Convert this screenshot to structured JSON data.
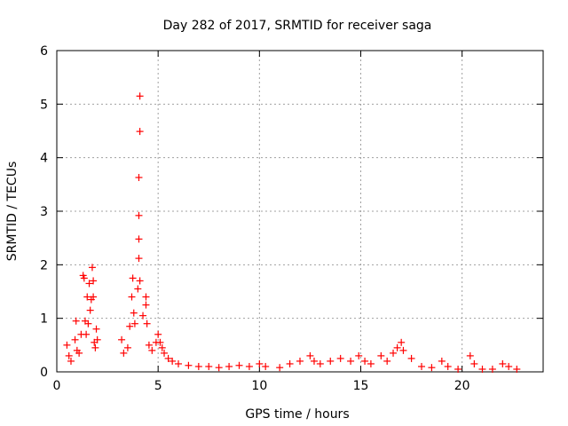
{
  "chart_data": {
    "type": "scatter",
    "title": "Day 282 of 2017, SRMTID for receiver saga",
    "xlabel": "GPS time / hours",
    "ylabel": "SRMTID / TECUs",
    "xlim": [
      0,
      24
    ],
    "ylim": [
      0,
      6
    ],
    "x_ticks": [
      0,
      5,
      10,
      15,
      20
    ],
    "x_tick_labels": [
      "0",
      "5",
      "10",
      "15",
      "20"
    ],
    "y_ticks": [
      0,
      1,
      2,
      3,
      4,
      5,
      6
    ],
    "y_tick_labels": [
      "0",
      "1",
      "2",
      "3",
      "4",
      "5",
      "6"
    ],
    "grid": true,
    "marker": "+",
    "series": [
      {
        "name": "SRMTID",
        "color": "#ff0000",
        "points": [
          [
            0.5,
            0.5
          ],
          [
            0.6,
            0.3
          ],
          [
            0.7,
            0.2
          ],
          [
            0.9,
            0.6
          ],
          [
            0.95,
            0.95
          ],
          [
            1.0,
            0.4
          ],
          [
            1.1,
            0.35
          ],
          [
            1.2,
            0.7
          ],
          [
            1.3,
            1.8
          ],
          [
            1.35,
            1.75
          ],
          [
            1.4,
            0.95
          ],
          [
            1.45,
            0.7
          ],
          [
            1.5,
            1.4
          ],
          [
            1.55,
            0.9
          ],
          [
            1.6,
            1.65
          ],
          [
            1.65,
            1.15
          ],
          [
            1.7,
            1.35
          ],
          [
            1.75,
            1.95
          ],
          [
            1.8,
            1.7
          ],
          [
            1.8,
            1.4
          ],
          [
            1.85,
            0.55
          ],
          [
            1.9,
            0.45
          ],
          [
            1.95,
            0.8
          ],
          [
            2.0,
            0.6
          ],
          [
            3.2,
            0.6
          ],
          [
            3.3,
            0.35
          ],
          [
            3.5,
            0.45
          ],
          [
            3.6,
            0.85
          ],
          [
            3.7,
            1.4
          ],
          [
            3.75,
            1.75
          ],
          [
            3.8,
            1.1
          ],
          [
            3.85,
            0.9
          ],
          [
            4.0,
            1.55
          ],
          [
            4.05,
            2.12
          ],
          [
            4.05,
            2.48
          ],
          [
            4.05,
            2.92
          ],
          [
            4.05,
            3.63
          ],
          [
            4.1,
            4.49
          ],
          [
            4.1,
            5.15
          ],
          [
            4.1,
            1.7
          ],
          [
            4.25,
            1.05
          ],
          [
            4.4,
            1.4
          ],
          [
            4.4,
            1.25
          ],
          [
            4.45,
            0.9
          ],
          [
            4.55,
            0.5
          ],
          [
            4.7,
            0.4
          ],
          [
            4.9,
            0.55
          ],
          [
            5.0,
            0.7
          ],
          [
            5.1,
            0.55
          ],
          [
            5.2,
            0.45
          ],
          [
            5.3,
            0.35
          ],
          [
            5.5,
            0.25
          ],
          [
            5.7,
            0.2
          ],
          [
            6.0,
            0.15
          ],
          [
            6.5,
            0.12
          ],
          [
            7.0,
            0.1
          ],
          [
            7.5,
            0.1
          ],
          [
            8.0,
            0.08
          ],
          [
            8.5,
            0.1
          ],
          [
            9.0,
            0.12
          ],
          [
            9.5,
            0.1
          ],
          [
            10.0,
            0.15
          ],
          [
            10.3,
            0.1
          ],
          [
            11.0,
            0.08
          ],
          [
            11.5,
            0.15
          ],
          [
            12.0,
            0.2
          ],
          [
            12.5,
            0.3
          ],
          [
            12.7,
            0.2
          ],
          [
            13.0,
            0.15
          ],
          [
            13.5,
            0.2
          ],
          [
            14.0,
            0.25
          ],
          [
            14.5,
            0.2
          ],
          [
            14.9,
            0.3
          ],
          [
            15.2,
            0.2
          ],
          [
            15.5,
            0.15
          ],
          [
            16.0,
            0.3
          ],
          [
            16.3,
            0.2
          ],
          [
            16.6,
            0.35
          ],
          [
            16.8,
            0.45
          ],
          [
            17.0,
            0.55
          ],
          [
            17.1,
            0.4
          ],
          [
            17.5,
            0.25
          ],
          [
            18.0,
            0.1
          ],
          [
            18.5,
            0.08
          ],
          [
            19.0,
            0.2
          ],
          [
            19.3,
            0.1
          ],
          [
            19.8,
            0.05
          ],
          [
            20.4,
            0.3
          ],
          [
            20.6,
            0.15
          ],
          [
            21.0,
            0.05
          ],
          [
            21.5,
            0.05
          ],
          [
            22.0,
            0.15
          ],
          [
            22.3,
            0.1
          ],
          [
            22.7,
            0.05
          ]
        ]
      }
    ]
  }
}
